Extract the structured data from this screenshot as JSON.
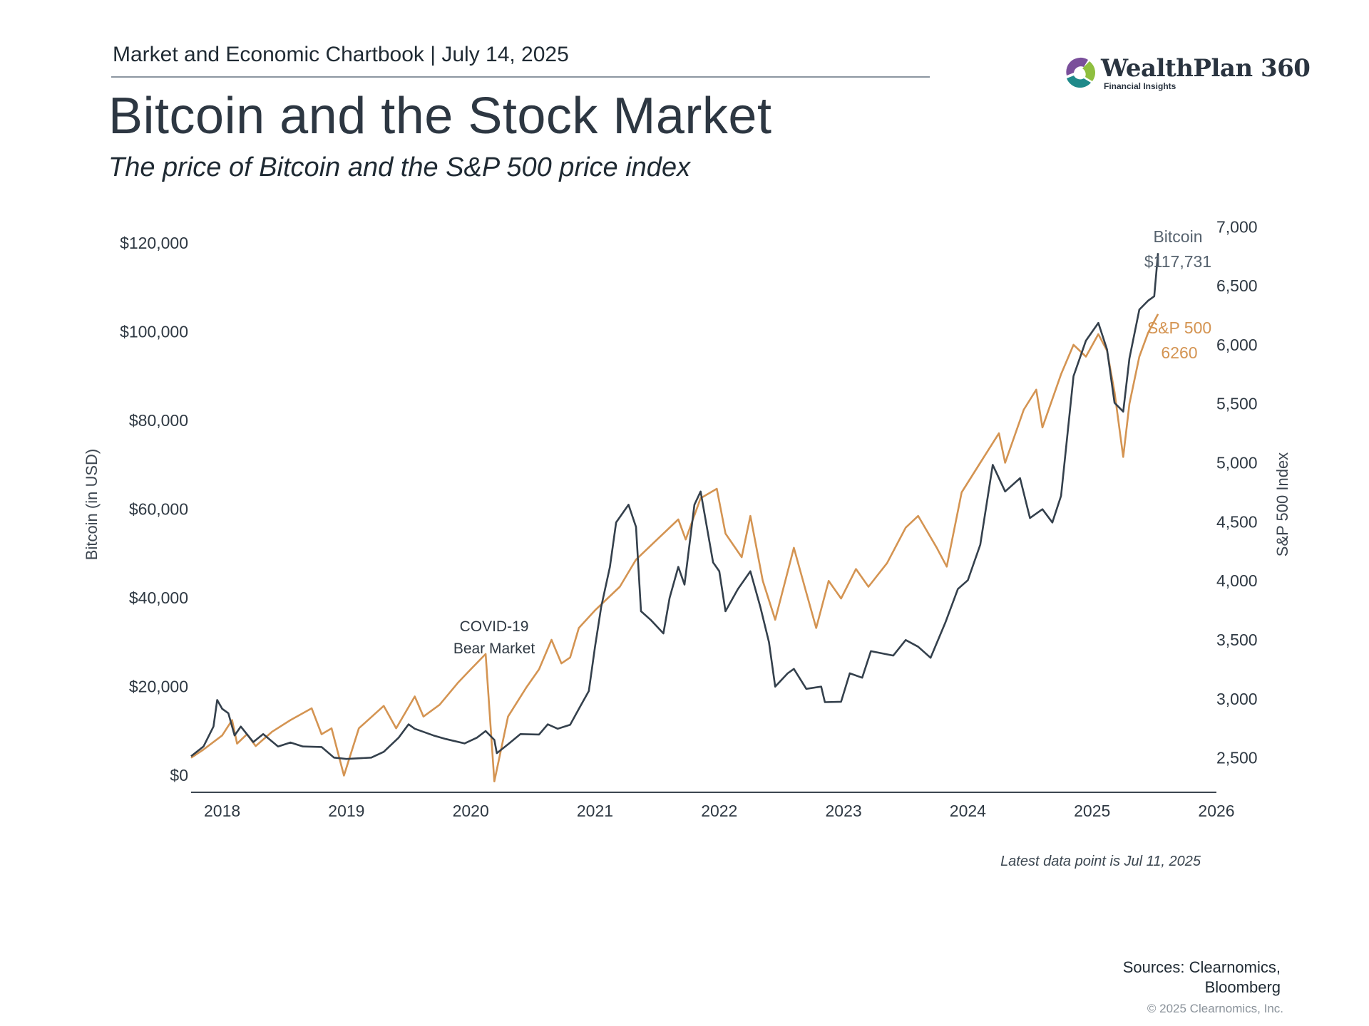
{
  "header": {
    "chartbook": "Market and Economic Chartbook | July 14, 2025",
    "title": "Bitcoin and the Stock Market",
    "subtitle": "The price of Bitcoin and the S&P 500 price index"
  },
  "logo": {
    "name": "WealthPlan 360",
    "tagline": "Financial Insights",
    "icon": "wealthplan-swirl-icon"
  },
  "footer": {
    "latest_point": "Latest data point is Jul 11, 2025",
    "sources_line1": "Sources: Clearnomics,",
    "sources_line2": "Bloomberg",
    "copyright": "© 2025 Clearnomics, Inc."
  },
  "chart_data": {
    "type": "line",
    "x_ticks": [
      "2018",
      "2019",
      "2020",
      "2021",
      "2022",
      "2023",
      "2024",
      "2025",
      "2026"
    ],
    "xlim": [
      2017.75,
      2026.0
    ],
    "left_axis": {
      "label": "Bitcoin (in USD)",
      "ylim": [
        -3500,
        125000
      ],
      "ticks": [
        0,
        20000,
        40000,
        60000,
        80000,
        100000,
        120000
      ],
      "tick_labels": [
        "$0",
        "$20,000",
        "$40,000",
        "$60,000",
        "$80,000",
        "$100,000",
        "$120,000"
      ]
    },
    "right_axis": {
      "label": "S&P 500 Index",
      "ylim": [
        2220,
        7050
      ],
      "ticks": [
        2500,
        3000,
        3500,
        4000,
        4500,
        5000,
        5500,
        6000,
        6500,
        7000
      ],
      "tick_labels": [
        "2,500",
        "3,000",
        "3,500",
        "4,000",
        "4,500",
        "5,000",
        "5,500",
        "6,000",
        "6,500",
        "7,000"
      ]
    },
    "series": [
      {
        "name": "Bitcoin",
        "axis": "left",
        "color": "#34404c",
        "end_label_name": "Bitcoin",
        "end_label_value": "$117,731",
        "points": [
          [
            2017.75,
            4300
          ],
          [
            2017.85,
            6500
          ],
          [
            2017.93,
            11000
          ],
          [
            2017.96,
            17000
          ],
          [
            2018.0,
            15000
          ],
          [
            2018.05,
            14000
          ],
          [
            2018.1,
            9000
          ],
          [
            2018.15,
            11000
          ],
          [
            2018.25,
            7500
          ],
          [
            2018.33,
            9300
          ],
          [
            2018.45,
            6500
          ],
          [
            2018.55,
            7400
          ],
          [
            2018.65,
            6500
          ],
          [
            2018.8,
            6400
          ],
          [
            2018.9,
            4000
          ],
          [
            2019.0,
            3700
          ],
          [
            2019.2,
            4000
          ],
          [
            2019.3,
            5300
          ],
          [
            2019.42,
            8500
          ],
          [
            2019.5,
            11500
          ],
          [
            2019.55,
            10500
          ],
          [
            2019.7,
            9000
          ],
          [
            2019.8,
            8200
          ],
          [
            2019.95,
            7200
          ],
          [
            2020.05,
            8500
          ],
          [
            2020.12,
            10000
          ],
          [
            2020.19,
            8000
          ],
          [
            2020.21,
            5000
          ],
          [
            2020.3,
            7000
          ],
          [
            2020.4,
            9300
          ],
          [
            2020.55,
            9200
          ],
          [
            2020.62,
            11500
          ],
          [
            2020.7,
            10500
          ],
          [
            2020.8,
            11400
          ],
          [
            2020.88,
            15500
          ],
          [
            2020.95,
            19000
          ],
          [
            2021.0,
            29000
          ],
          [
            2021.05,
            38000
          ],
          [
            2021.12,
            47000
          ],
          [
            2021.17,
            57000
          ],
          [
            2021.27,
            61000
          ],
          [
            2021.33,
            56000
          ],
          [
            2021.37,
            37000
          ],
          [
            2021.45,
            35000
          ],
          [
            2021.55,
            32000
          ],
          [
            2021.6,
            40000
          ],
          [
            2021.67,
            47000
          ],
          [
            2021.72,
            43000
          ],
          [
            2021.8,
            61000
          ],
          [
            2021.85,
            64000
          ],
          [
            2021.95,
            48000
          ],
          [
            2022.0,
            46000
          ],
          [
            2022.05,
            37000
          ],
          [
            2022.15,
            42000
          ],
          [
            2022.25,
            46000
          ],
          [
            2022.33,
            38000
          ],
          [
            2022.4,
            30000
          ],
          [
            2022.45,
            20000
          ],
          [
            2022.55,
            23000
          ],
          [
            2022.6,
            24000
          ],
          [
            2022.7,
            19500
          ],
          [
            2022.82,
            20000
          ],
          [
            2022.85,
            16500
          ],
          [
            2022.98,
            16600
          ],
          [
            2023.05,
            23000
          ],
          [
            2023.15,
            22000
          ],
          [
            2023.22,
            28000
          ],
          [
            2023.4,
            27000
          ],
          [
            2023.5,
            30500
          ],
          [
            2023.6,
            29000
          ],
          [
            2023.7,
            26500
          ],
          [
            2023.82,
            34500
          ],
          [
            2023.92,
            42000
          ],
          [
            2024.0,
            44000
          ],
          [
            2024.1,
            52000
          ],
          [
            2024.2,
            70000
          ],
          [
            2024.3,
            64000
          ],
          [
            2024.42,
            67000
          ],
          [
            2024.5,
            58000
          ],
          [
            2024.6,
            60000
          ],
          [
            2024.68,
            57000
          ],
          [
            2024.75,
            63000
          ],
          [
            2024.85,
            90000
          ],
          [
            2024.95,
            98000
          ],
          [
            2025.05,
            102000
          ],
          [
            2025.12,
            96000
          ],
          [
            2025.18,
            84000
          ],
          [
            2025.25,
            82000
          ],
          [
            2025.3,
            94000
          ],
          [
            2025.38,
            105000
          ],
          [
            2025.45,
            107000
          ],
          [
            2025.5,
            108000
          ],
          [
            2025.53,
            117731
          ]
        ]
      },
      {
        "name": "S&P 500",
        "axis": "right",
        "color": "#d49452",
        "end_label_name": "S&P 500",
        "end_label_value": "6260",
        "points": [
          [
            2017.75,
            2500
          ],
          [
            2017.85,
            2570
          ],
          [
            2018.0,
            2690
          ],
          [
            2018.08,
            2820
          ],
          [
            2018.12,
            2620
          ],
          [
            2018.2,
            2700
          ],
          [
            2018.27,
            2600
          ],
          [
            2018.4,
            2720
          ],
          [
            2018.55,
            2820
          ],
          [
            2018.72,
            2920
          ],
          [
            2018.8,
            2700
          ],
          [
            2018.88,
            2750
          ],
          [
            2018.98,
            2350
          ],
          [
            2019.1,
            2750
          ],
          [
            2019.3,
            2940
          ],
          [
            2019.4,
            2750
          ],
          [
            2019.55,
            3020
          ],
          [
            2019.62,
            2850
          ],
          [
            2019.75,
            2950
          ],
          [
            2019.9,
            3140
          ],
          [
            2020.0,
            3250
          ],
          [
            2020.12,
            3380
          ],
          [
            2020.19,
            2300
          ],
          [
            2020.3,
            2850
          ],
          [
            2020.45,
            3100
          ],
          [
            2020.55,
            3250
          ],
          [
            2020.65,
            3500
          ],
          [
            2020.73,
            3300
          ],
          [
            2020.8,
            3350
          ],
          [
            2020.87,
            3600
          ],
          [
            2021.0,
            3750
          ],
          [
            2021.2,
            3950
          ],
          [
            2021.33,
            4180
          ],
          [
            2021.5,
            4350
          ],
          [
            2021.67,
            4520
          ],
          [
            2021.73,
            4350
          ],
          [
            2021.85,
            4700
          ],
          [
            2021.98,
            4780
          ],
          [
            2022.05,
            4400
          ],
          [
            2022.18,
            4200
          ],
          [
            2022.25,
            4550
          ],
          [
            2022.35,
            4000
          ],
          [
            2022.45,
            3670
          ],
          [
            2022.6,
            4280
          ],
          [
            2022.7,
            3900
          ],
          [
            2022.78,
            3600
          ],
          [
            2022.88,
            4000
          ],
          [
            2022.98,
            3850
          ],
          [
            2023.1,
            4100
          ],
          [
            2023.2,
            3950
          ],
          [
            2023.35,
            4150
          ],
          [
            2023.5,
            4450
          ],
          [
            2023.6,
            4550
          ],
          [
            2023.75,
            4280
          ],
          [
            2023.83,
            4120
          ],
          [
            2023.95,
            4750
          ],
          [
            2024.1,
            5000
          ],
          [
            2024.25,
            5250
          ],
          [
            2024.3,
            5000
          ],
          [
            2024.45,
            5450
          ],
          [
            2024.55,
            5620
          ],
          [
            2024.6,
            5300
          ],
          [
            2024.75,
            5750
          ],
          [
            2024.85,
            6000
          ],
          [
            2024.95,
            5900
          ],
          [
            2025.05,
            6090
          ],
          [
            2025.12,
            5950
          ],
          [
            2025.18,
            5600
          ],
          [
            2025.25,
            5050
          ],
          [
            2025.3,
            5500
          ],
          [
            2025.38,
            5900
          ],
          [
            2025.45,
            6100
          ],
          [
            2025.53,
            6260
          ]
        ]
      }
    ],
    "annotation": {
      "line1": "COVID-19",
      "line2": "Bear Market",
      "x": 2020.2
    }
  }
}
